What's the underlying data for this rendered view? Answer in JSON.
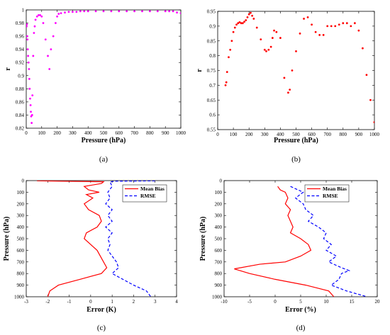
{
  "chart_data": [
    {
      "id": "a",
      "type": "scatter",
      "caption": "(a)",
      "xlabel": "Pressure (hPa)",
      "ylabel": "r",
      "xlim": [
        0,
        1000
      ],
      "ylim": [
        0.82,
        1.0
      ],
      "xticks": [
        0,
        100,
        200,
        300,
        400,
        500,
        600,
        700,
        800,
        900,
        1000
      ],
      "yticks": [
        0.82,
        0.84,
        0.86,
        0.88,
        0.9,
        0.92,
        0.94,
        0.96,
        0.98,
        1
      ],
      "yticklabels": [
        "0.82",
        "0.84",
        "0.86",
        "0.88",
        "0.9",
        "0.92",
        "0.94",
        "0.96",
        "0.98",
        "1"
      ],
      "grid": false,
      "color": "#ff00ff",
      "series": [
        {
          "x": [
            2,
            4,
            6,
            8,
            10,
            12,
            15,
            18,
            20,
            22,
            25,
            28,
            30,
            32,
            35,
            38,
            40,
            45,
            50,
            55,
            60,
            70,
            80,
            90,
            100,
            110,
            125,
            140,
            150,
            160,
            175,
            190,
            200,
            210,
            225,
            250,
            275,
            300,
            325,
            350,
            375,
            400,
            450,
            500,
            550,
            600,
            650,
            700,
            750,
            800,
            850,
            900,
            925,
            950,
            975,
            1000
          ],
          "y": [
            0.975,
            0.978,
            0.96,
            0.955,
            0.94,
            0.93,
            0.92,
            0.91,
            0.895,
            0.88,
            0.865,
            0.855,
            0.845,
            0.838,
            0.828,
            0.84,
            0.87,
            0.93,
            0.965,
            0.975,
            0.985,
            0.99,
            0.992,
            0.992,
            0.99,
            0.98,
            0.955,
            0.93,
            0.91,
            0.94,
            0.96,
            0.98,
            0.99,
            0.994,
            0.995,
            0.996,
            0.997,
            0.997,
            0.997,
            0.998,
            0.998,
            0.998,
            0.998,
            0.998,
            0.998,
            0.998,
            0.998,
            0.998,
            0.998,
            0.998,
            0.998,
            0.998,
            0.998,
            0.998,
            0.996,
            0.995
          ]
        }
      ]
    },
    {
      "id": "b",
      "type": "scatter",
      "caption": "(b)",
      "xlabel": "Pressure (hPa)",
      "ylabel": "r",
      "xlim": [
        0,
        1000
      ],
      "ylim": [
        0.55,
        0.95
      ],
      "xticks": [
        0,
        100,
        200,
        300,
        400,
        500,
        600,
        700,
        800,
        900,
        1000
      ],
      "yticks": [
        0.55,
        0.6,
        0.65,
        0.7,
        0.75,
        0.8,
        0.85,
        0.9,
        0.95
      ],
      "yticklabels": [
        "0.55",
        "0.6",
        "0.65",
        "0.7",
        "0.75",
        "0.8",
        "0.85",
        "0.9",
        "0.95"
      ],
      "grid": false,
      "color": "#ff0000",
      "series": [
        {
          "x": [
            50,
            55,
            60,
            70,
            80,
            90,
            100,
            110,
            120,
            130,
            140,
            150,
            160,
            170,
            180,
            190,
            200,
            210,
            220,
            230,
            250,
            275,
            300,
            310,
            325,
            340,
            350,
            360,
            375,
            400,
            425,
            450,
            460,
            475,
            500,
            525,
            550,
            575,
            600,
            625,
            650,
            675,
            700,
            725,
            750,
            775,
            800,
            825,
            850,
            875,
            900,
            925,
            950,
            975,
            1000
          ],
          "y": [
            0.7,
            0.71,
            0.745,
            0.795,
            0.82,
            0.85,
            0.88,
            0.895,
            0.905,
            0.91,
            0.913,
            0.91,
            0.91,
            0.915,
            0.92,
            0.93,
            0.94,
            0.945,
            0.935,
            0.925,
            0.895,
            0.855,
            0.82,
            0.815,
            0.82,
            0.83,
            0.86,
            0.885,
            0.88,
            0.86,
            0.725,
            0.675,
            0.685,
            0.75,
            0.815,
            0.875,
            0.925,
            0.93,
            0.905,
            0.88,
            0.87,
            0.87,
            0.9,
            0.9,
            0.9,
            0.905,
            0.91,
            0.91,
            0.9,
            0.91,
            0.885,
            0.825,
            0.735,
            0.65,
            0.575
          ]
        }
      ]
    },
    {
      "id": "c",
      "type": "line",
      "caption": "(c)",
      "xlabel": "Error (K)",
      "ylabel": "Pressure (hPa)",
      "xlim": [
        -3,
        4
      ],
      "ylim": [
        0,
        1000
      ],
      "y_reversed": true,
      "xticks": [
        -3,
        -2,
        -1,
        0,
        1,
        2,
        3,
        4
      ],
      "yticks": [
        0,
        100,
        200,
        300,
        400,
        500,
        600,
        700,
        800,
        900,
        1000
      ],
      "grid": false,
      "legend_position": "top-right",
      "series": [
        {
          "name": "Mean Bias",
          "color": "#ff0000",
          "style": "solid",
          "x": [
            -2.5,
            -1.5,
            0.6,
            0.5,
            -0.3,
            -0.1,
            0.4,
            -0.2,
            0.1,
            -0.3,
            -0.1,
            0.4,
            0.5,
            0.3,
            -0.2,
            -0.3,
            0.3,
            0.6,
            0.75,
            0.5,
            -0.5,
            -1.5,
            -1.9,
            -2.0
          ],
          "y": [
            2,
            5,
            10,
            25,
            50,
            80,
            100,
            120,
            150,
            200,
            250,
            300,
            350,
            400,
            450,
            500,
            600,
            700,
            750,
            800,
            850,
            900,
            950,
            1000
          ]
        },
        {
          "name": "RMSE",
          "color": "#0000ff",
          "style": "dashed",
          "x": [
            3.0,
            1.2,
            0.9,
            1.0,
            0.8,
            0.9,
            0.7,
            1.0,
            0.8,
            1.0,
            0.7,
            1.0,
            0.8,
            0.9,
            0.8,
            1.0,
            1.2,
            1.3,
            1.0,
            1.5,
            2.0,
            2.6,
            2.8
          ],
          "y": [
            2,
            5,
            10,
            50,
            100,
            150,
            200,
            250,
            300,
            350,
            400,
            450,
            500,
            550,
            600,
            650,
            700,
            750,
            800,
            850,
            900,
            950,
            1000
          ]
        }
      ]
    },
    {
      "id": "d",
      "type": "line",
      "caption": "(d)",
      "xlabel": "Error (%)",
      "ylabel": "Pressure (hPa)",
      "xlim": [
        -10,
        20
      ],
      "ylim": [
        0,
        1000
      ],
      "y_reversed": true,
      "xticks": [
        -10,
        -5,
        0,
        5,
        10,
        15,
        20
      ],
      "yticks": [
        0,
        100,
        200,
        300,
        400,
        500,
        600,
        700,
        800,
        900,
        1000
      ],
      "grid": false,
      "legend_position": "top-right",
      "series": [
        {
          "name": "Mean Bias",
          "color": "#ff0000",
          "style": "solid",
          "x": [
            0.5,
            1.0,
            2.0,
            2.5,
            2.0,
            3.0,
            2.5,
            3.0,
            3.5,
            3.0,
            5.0,
            6.5,
            7.0,
            5.0,
            2.0,
            -3.0,
            -8.0,
            -5.0,
            0.0,
            6.0,
            10.5,
            11.5
          ],
          "y": [
            50,
            80,
            100,
            150,
            200,
            250,
            300,
            350,
            400,
            450,
            500,
            550,
            600,
            650,
            700,
            720,
            760,
            800,
            850,
            900,
            950,
            1000
          ]
        },
        {
          "name": "RMSE",
          "color": "#0000ff",
          "style": "dashed",
          "x": [
            3.0,
            4.5,
            5.5,
            4.0,
            5.5,
            6.0,
            7.5,
            6.5,
            8.5,
            10.0,
            9.5,
            11.0,
            10.0,
            12.0,
            10.5,
            13.0,
            14.5,
            13.0,
            12.5,
            11.0,
            14.0,
            18.0
          ],
          "y": [
            50,
            80,
            100,
            150,
            200,
            250,
            300,
            350,
            400,
            450,
            500,
            550,
            600,
            650,
            700,
            750,
            775,
            800,
            850,
            900,
            950,
            1000
          ]
        }
      ]
    }
  ]
}
